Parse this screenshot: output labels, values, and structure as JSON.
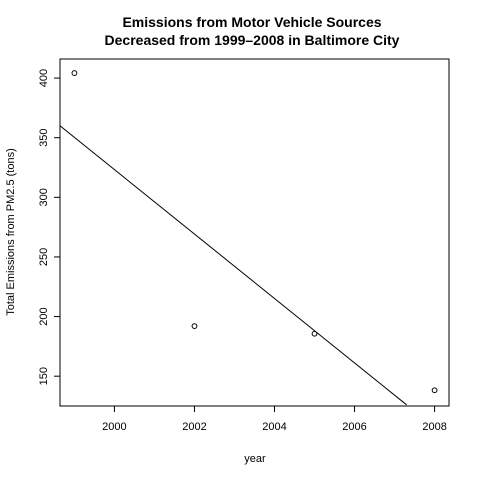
{
  "chart_data": {
    "type": "scatter",
    "title": [
      "Emissions from Motor Vehicle Sources",
      "Decreased from 1999–2008 in Baltimore City"
    ],
    "xlabel": "year",
    "ylabel": "Total Emissions from PM2.5 (tons)",
    "xlim": [
      1998.64,
      2008.36
    ],
    "ylim": [
      125.0,
      416.0
    ],
    "xticks": [
      2000,
      2002,
      2004,
      2006,
      2008
    ],
    "yticks": [
      150,
      200,
      250,
      300,
      350,
      400
    ],
    "points": [
      {
        "x": 1999,
        "y": 404.2
      },
      {
        "x": 2002,
        "y": 192.0
      },
      {
        "x": 2005,
        "y": 185.6
      },
      {
        "x": 2008,
        "y": 138.2
      }
    ],
    "fit_line": {
      "x": [
        1998.64,
        2007.3
      ],
      "y": [
        360.0,
        126.0
      ]
    },
    "grid": false,
    "legend": "none"
  }
}
